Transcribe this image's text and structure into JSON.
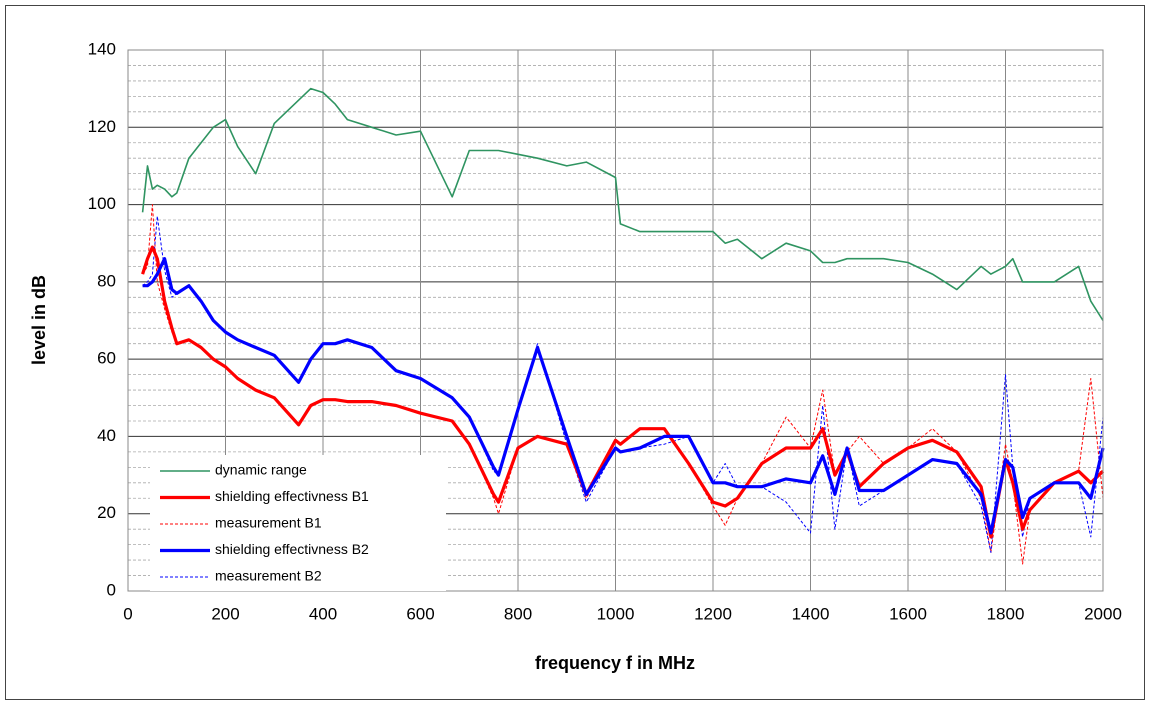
{
  "chart_data": {
    "type": "line",
    "xlabel": "frequency f in MHz",
    "ylabel": "level in dB",
    "xlim": [
      0,
      2000
    ],
    "xticks": [
      0,
      200,
      400,
      600,
      800,
      1000,
      1200,
      1400,
      1600,
      1800,
      2000
    ],
    "ylim": [
      0,
      140
    ],
    "yticks": [
      0,
      20,
      40,
      60,
      80,
      100,
      120,
      140
    ],
    "y_minor_ticks": [
      4,
      8,
      12,
      16,
      24,
      28,
      32,
      36,
      44,
      48,
      52,
      56,
      64,
      68,
      72,
      76,
      84,
      88,
      92,
      96,
      104,
      108,
      112,
      116,
      124,
      128,
      132,
      136
    ],
    "grid": true,
    "legend": "lower left",
    "x": [
      30,
      40,
      50,
      60,
      75,
      90,
      100,
      125,
      150,
      175,
      200,
      225,
      262,
      300,
      350,
      375,
      400,
      425,
      450,
      500,
      550,
      600,
      665,
      700,
      750,
      760,
      800,
      840,
      900,
      940,
      1000,
      1010,
      1050,
      1100,
      1150,
      1200,
      1225,
      1250,
      1300,
      1350,
      1400,
      1425,
      1450,
      1475,
      1500,
      1550,
      1600,
      1650,
      1700,
      1750,
      1770,
      1800,
      1815,
      1835,
      1850,
      1900,
      1950,
      1975,
      2000
    ],
    "series": [
      {
        "name": "dynamic range",
        "color": "#2f9461",
        "line_width": 1.6,
        "line_style": "solid",
        "values": [
          98,
          110,
          104,
          105,
          104,
          102,
          103,
          112,
          116,
          120,
          122,
          115,
          108,
          121,
          127,
          130,
          129,
          126,
          122,
          120,
          118,
          119,
          102,
          114,
          114,
          114,
          113,
          112,
          110,
          111,
          107,
          95,
          93,
          93,
          93,
          93,
          90,
          91,
          86,
          90,
          88,
          85,
          85,
          86,
          86,
          86,
          85,
          82,
          78,
          84,
          82,
          84,
          86,
          80,
          80,
          80,
          84,
          75,
          70
        ]
      },
      {
        "name": "shielding effectivness B1",
        "color": "#ff0000",
        "line_width": 3.2,
        "line_style": "solid",
        "values": [
          82,
          86,
          89,
          86,
          75,
          68,
          64,
          65,
          63,
          60,
          58,
          55,
          52,
          50,
          43,
          48,
          49.5,
          49.5,
          49,
          49,
          48,
          46,
          44,
          38,
          25,
          23,
          37,
          40,
          38,
          25,
          39,
          38,
          42,
          42,
          33,
          23,
          22,
          24,
          33,
          37,
          37,
          42,
          30,
          36,
          27,
          33,
          37,
          39,
          36,
          27,
          14,
          34,
          28,
          16,
          21,
          28,
          31,
          28,
          31
        ]
      },
      {
        "name": "measurement B1",
        "color": "#ff0000",
        "line_width": 1,
        "line_style": "dashed",
        "values": [
          82,
          84,
          100,
          80,
          73,
          67,
          64,
          65,
          63,
          60,
          58,
          55,
          52,
          50,
          43,
          48,
          49.5,
          49.5,
          49,
          49,
          48,
          46,
          44,
          38,
          24,
          20,
          37,
          40,
          38,
          24,
          39,
          38,
          42,
          42,
          33,
          22,
          17,
          24,
          33,
          45,
          37,
          52,
          30,
          36,
          40,
          33,
          37,
          42,
          36,
          24,
          10,
          38,
          28,
          7,
          21,
          28,
          31,
          55,
          24
        ]
      },
      {
        "name": "shielding effectivness B2",
        "color": "#0000ff",
        "line_width": 3.2,
        "line_style": "solid",
        "values": [
          79,
          79,
          80,
          82,
          86,
          78,
          77,
          79,
          75,
          70,
          67,
          65,
          63,
          61,
          54,
          60,
          64,
          64,
          65,
          63,
          57,
          55,
          50,
          45,
          32,
          30,
          47,
          63,
          40,
          25,
          37,
          36,
          37,
          40,
          40,
          28,
          28,
          27,
          27,
          29,
          28,
          35,
          25,
          37,
          26,
          26,
          30,
          34,
          33,
          25,
          15,
          34,
          32,
          19,
          24,
          28,
          28,
          24,
          37
        ]
      },
      {
        "name": "measurement B2",
        "color": "#0000ff",
        "line_width": 1,
        "line_style": "dashed",
        "values": [
          79,
          80,
          82,
          97,
          83,
          76,
          77,
          79,
          75,
          70,
          67,
          65,
          63,
          61,
          54,
          60,
          64,
          64,
          65,
          63,
          57,
          55,
          50,
          45,
          31,
          30,
          47,
          64,
          38,
          23,
          37,
          36,
          37,
          38,
          40,
          28,
          33,
          27,
          27,
          23,
          15,
          48,
          16,
          37,
          22,
          26,
          30,
          34,
          33,
          22,
          10,
          56,
          32,
          14,
          24,
          28,
          28,
          14,
          45
        ]
      }
    ]
  }
}
